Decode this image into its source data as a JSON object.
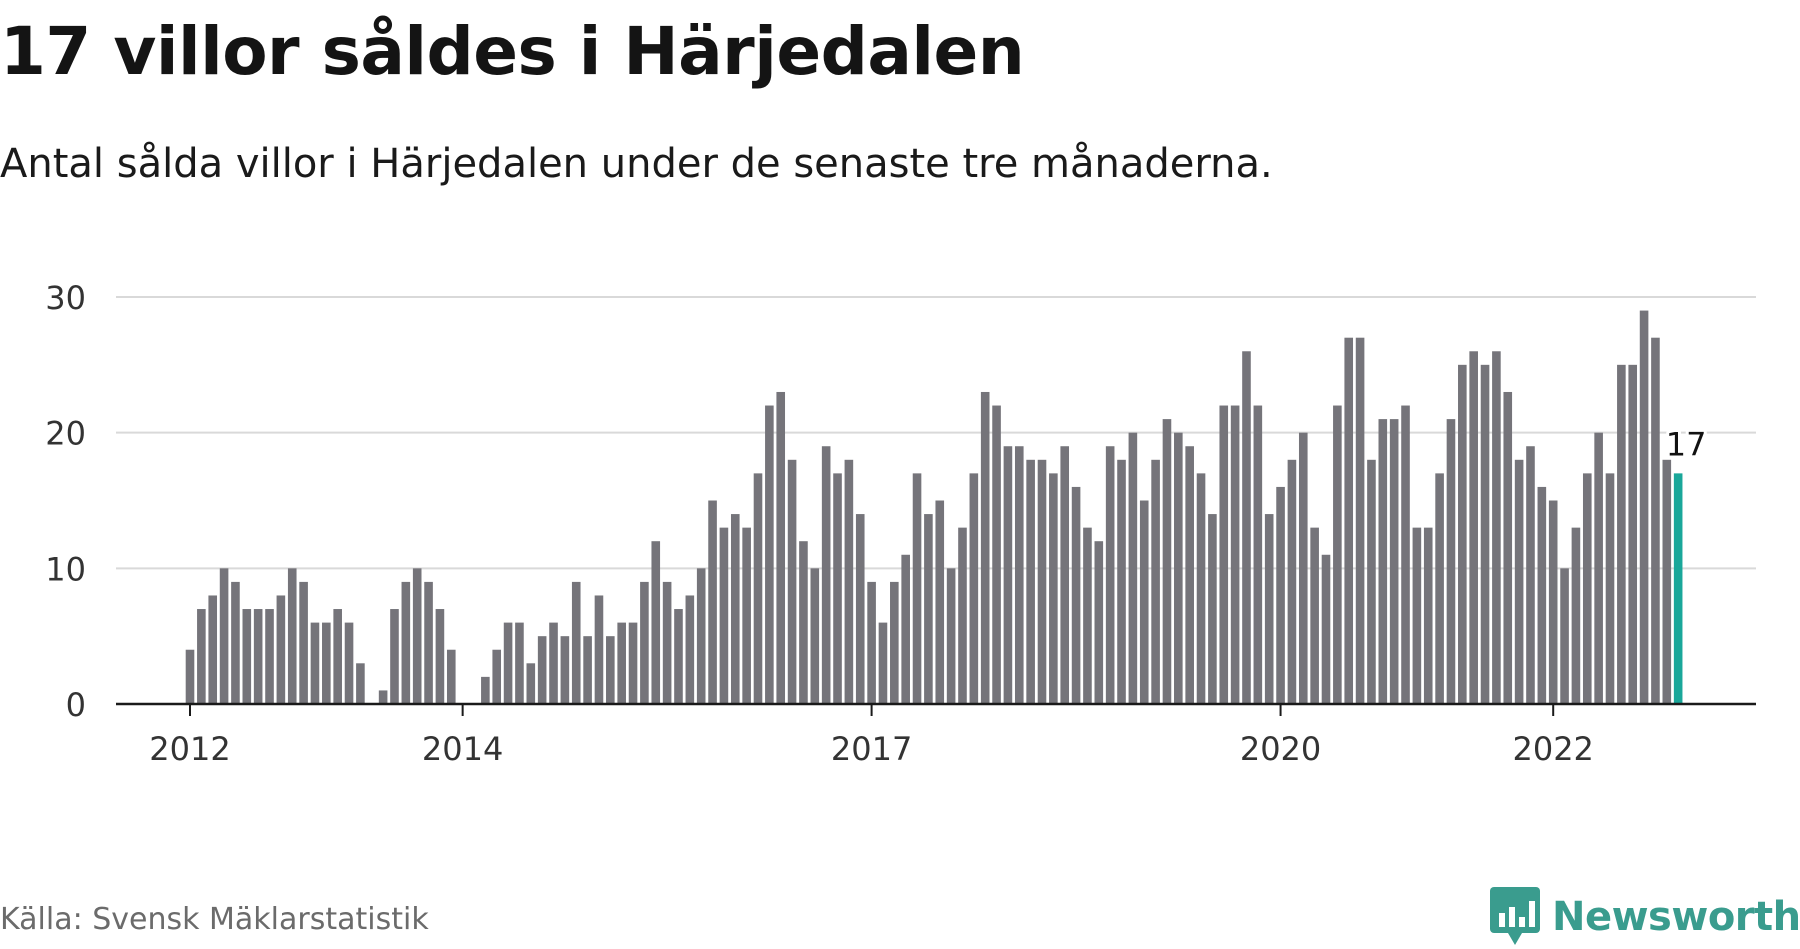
{
  "header": {
    "title": "17 villor såldes i Härjedalen",
    "subtitle": "Antal sålda villor i Härjedalen under de senaste tre månaderna."
  },
  "footer": {
    "source": "Källa: Svensk Mäklarstatistik",
    "brand": "Newsworthy",
    "brand_icon": "newsworthy-logo-icon"
  },
  "colors": {
    "bar": "#75747a",
    "highlight": "#1aa79a",
    "grid": "#d9d9d9",
    "axis": "#1a1a1a",
    "brand": "#3a9c8e"
  },
  "chart_data": {
    "type": "bar",
    "title": "17 villor såldes i Härjedalen",
    "subtitle": "Antal sålda villor i Härjedalen under de senaste tre månaderna.",
    "xlabel": "",
    "ylabel": "",
    "ylim": [
      0,
      30
    ],
    "yticks": [
      0,
      10,
      20,
      30
    ],
    "xtick_labels": [
      {
        "label": "2012",
        "index": 0
      },
      {
        "label": "2014",
        "index": 24
      },
      {
        "label": "2017",
        "index": 60
      },
      {
        "label": "2020",
        "index": 96
      },
      {
        "label": "2022",
        "index": 120
      }
    ],
    "grid": true,
    "legend": "none",
    "highlight_label": "17",
    "values": [
      4,
      7,
      8,
      10,
      9,
      7,
      7,
      7,
      8,
      10,
      9,
      6,
      6,
      7,
      6,
      3,
      0,
      1,
      7,
      9,
      10,
      9,
      7,
      4,
      0,
      0,
      2,
      4,
      6,
      6,
      3,
      5,
      6,
      5,
      9,
      5,
      8,
      5,
      6,
      6,
      9,
      12,
      9,
      7,
      8,
      10,
      15,
      13,
      14,
      13,
      17,
      22,
      23,
      18,
      12,
      10,
      19,
      17,
      18,
      14,
      9,
      6,
      9,
      11,
      17,
      14,
      15,
      10,
      13,
      17,
      23,
      22,
      19,
      19,
      18,
      18,
      17,
      19,
      16,
      13,
      12,
      19,
      18,
      20,
      15,
      18,
      21,
      20,
      19,
      17,
      14,
      22,
      22,
      26,
      22,
      14,
      16,
      18,
      20,
      13,
      11,
      22,
      27,
      27,
      18,
      21,
      21,
      22,
      13,
      13,
      17,
      21,
      25,
      26,
      25,
      26,
      23,
      18,
      19,
      16,
      15,
      10,
      13,
      17,
      20,
      17,
      25,
      25,
      29,
      27,
      18,
      17
    ]
  }
}
